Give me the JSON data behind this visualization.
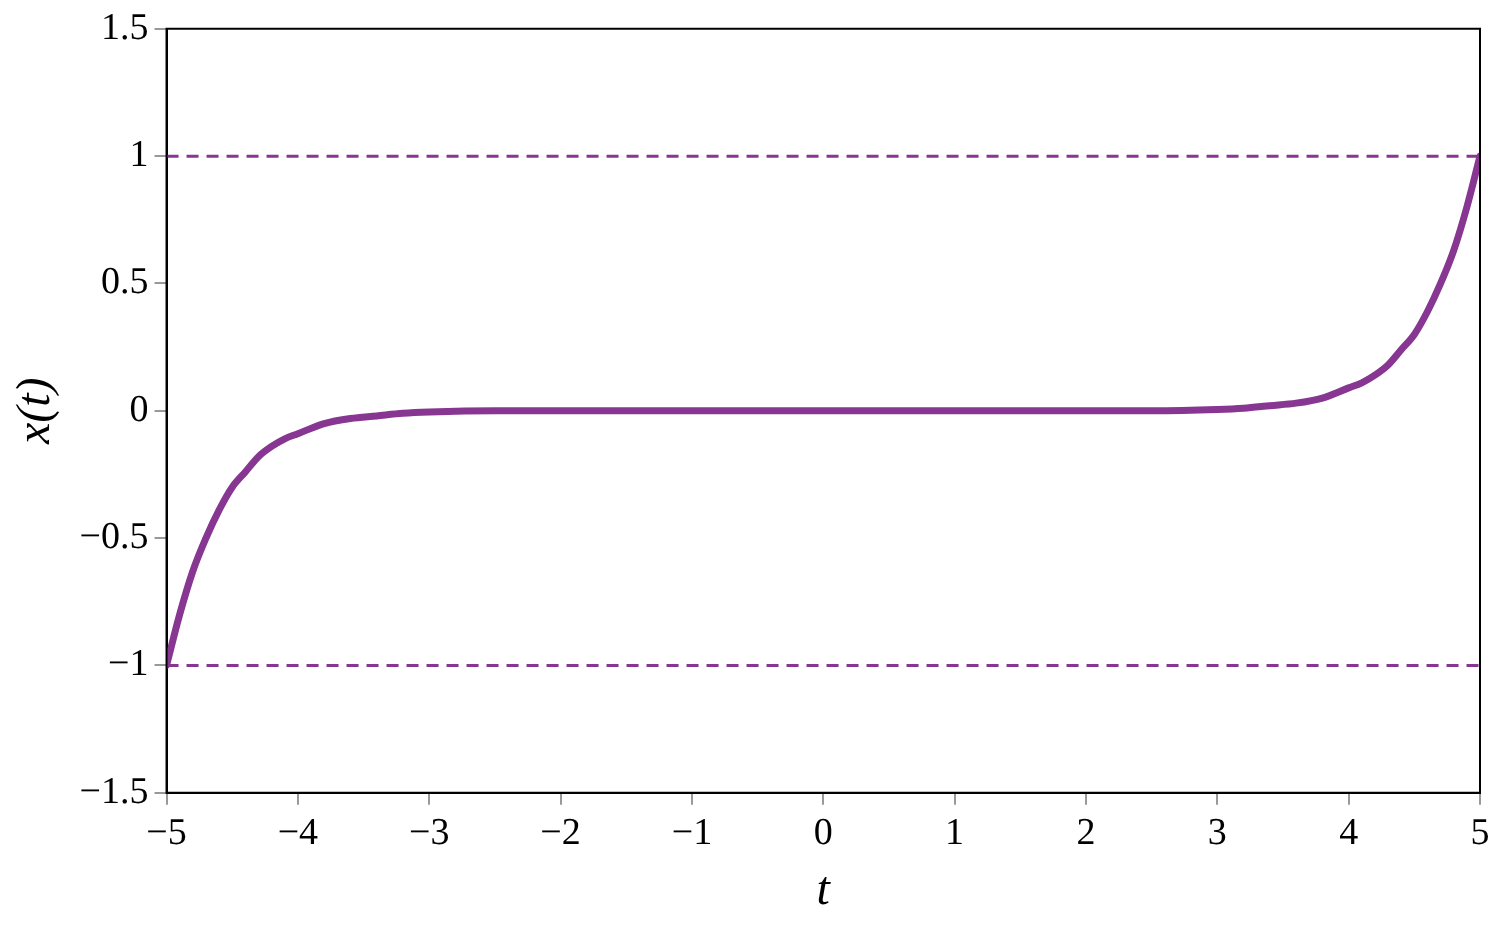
{
  "chart_data": {
    "type": "line",
    "xlabel": "t",
    "ylabel": "x(t)",
    "x": [
      -5,
      -4.9,
      -4.8,
      -4.7,
      -4.6,
      -4.5,
      -4.4,
      -4.3,
      -4.2,
      -4.1,
      -4,
      -3.8,
      -3.6,
      -3.4,
      -3.2,
      -3,
      -2.5,
      -2,
      -1,
      0,
      1,
      2,
      2.5,
      3,
      3.2,
      3.4,
      3.6,
      3.8,
      4,
      4.1,
      4.2,
      4.3,
      4.4,
      4.5,
      4.6,
      4.7,
      4.8,
      4.9,
      5
    ],
    "series": [
      {
        "color": "#873692",
        "values": [
          -1,
          -0.8,
          -0.63,
          -0.5,
          -0.39,
          -0.3,
          -0.24,
          -0.18,
          -0.14,
          -0.11,
          -0.09,
          -0.05,
          -0.03,
          -0.02,
          -0.01,
          -0.005,
          0,
          0,
          0,
          0,
          0,
          0,
          0,
          0.005,
          0.01,
          0.02,
          0.03,
          0.05,
          0.09,
          0.11,
          0.14,
          0.18,
          0.24,
          0.3,
          0.39,
          0.5,
          0.63,
          0.8,
          1
        ]
      }
    ],
    "xlim": [
      -5,
      5
    ],
    "xticks": [
      -5,
      -4,
      -3,
      -2,
      -1,
      0,
      1,
      2,
      3,
      4,
      5
    ],
    "ylim": [
      -1.5,
      1.5
    ],
    "yticks": [
      -1.5,
      -1,
      -0.5,
      0,
      0.5,
      1,
      1.5
    ],
    "ref_lines": [
      {
        "axis": "y",
        "value": 1,
        "color": "#873692",
        "line_style": "dashed"
      },
      {
        "axis": "y",
        "value": -1,
        "color": "#873692",
        "line_style": "dashed"
      }
    ],
    "grid": false,
    "legend": false,
    "marker": "none",
    "line_style": "solid"
  }
}
